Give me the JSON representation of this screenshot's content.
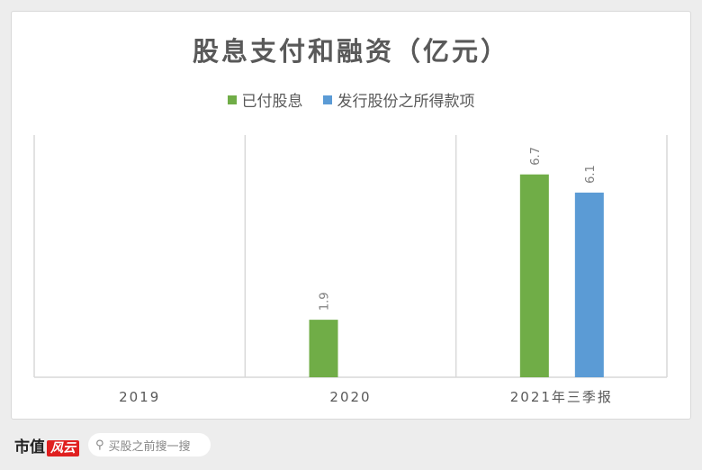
{
  "chart_data": {
    "type": "bar",
    "title": "股息支付和融资（亿元）",
    "categories": [
      "2019",
      "2020",
      "2021年三季报"
    ],
    "series": [
      {
        "name": "已付股息",
        "color": "#70ad47",
        "values": [
          null,
          1.9,
          6.7
        ]
      },
      {
        "name": "发行股份之所得款项",
        "color": "#5b9bd5",
        "values": [
          null,
          null,
          6.1
        ]
      }
    ],
    "ylim": [
      0,
      8
    ],
    "grid": "vertical category separators",
    "legend": "top",
    "data_labels": true
  },
  "footer": {
    "logo": "市值风云",
    "search_placeholder": "买股之前搜一搜"
  }
}
